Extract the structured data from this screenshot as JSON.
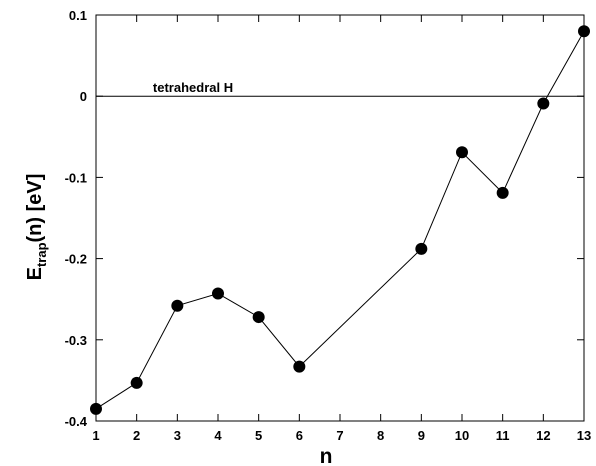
{
  "chart_data": {
    "type": "line",
    "x": [
      1,
      2,
      3,
      4,
      5,
      6,
      9,
      10,
      11,
      12,
      13
    ],
    "series": [
      {
        "values": [
          -0.385,
          -0.353,
          -0.258,
          -0.243,
          -0.272,
          -0.333,
          -0.188,
          -0.069,
          -0.119,
          -0.009,
          0.08
        ],
        "color": "#000000",
        "marker": "filled-circle"
      }
    ],
    "xlabel": "n",
    "ylabel_main": "E",
    "ylabel_sub": "trap",
    "ylabel_rest": "(n) [eV]",
    "xlim": [
      1,
      13
    ],
    "ylim": [
      -0.4,
      0.1
    ],
    "xticks": [
      1,
      2,
      3,
      4,
      5,
      6,
      7,
      8,
      9,
      10,
      11,
      12,
      13
    ],
    "yticks": [
      -0.4,
      -0.3,
      -0.2,
      -0.1,
      0,
      0.1
    ],
    "ytick_labels": [
      "-0.4",
      "-0.3",
      "-0.2",
      "-0.1",
      "0",
      "0.1"
    ],
    "reference_line": {
      "y": 0,
      "label": "tetrahedral H"
    },
    "grid": false,
    "legend": "none"
  }
}
